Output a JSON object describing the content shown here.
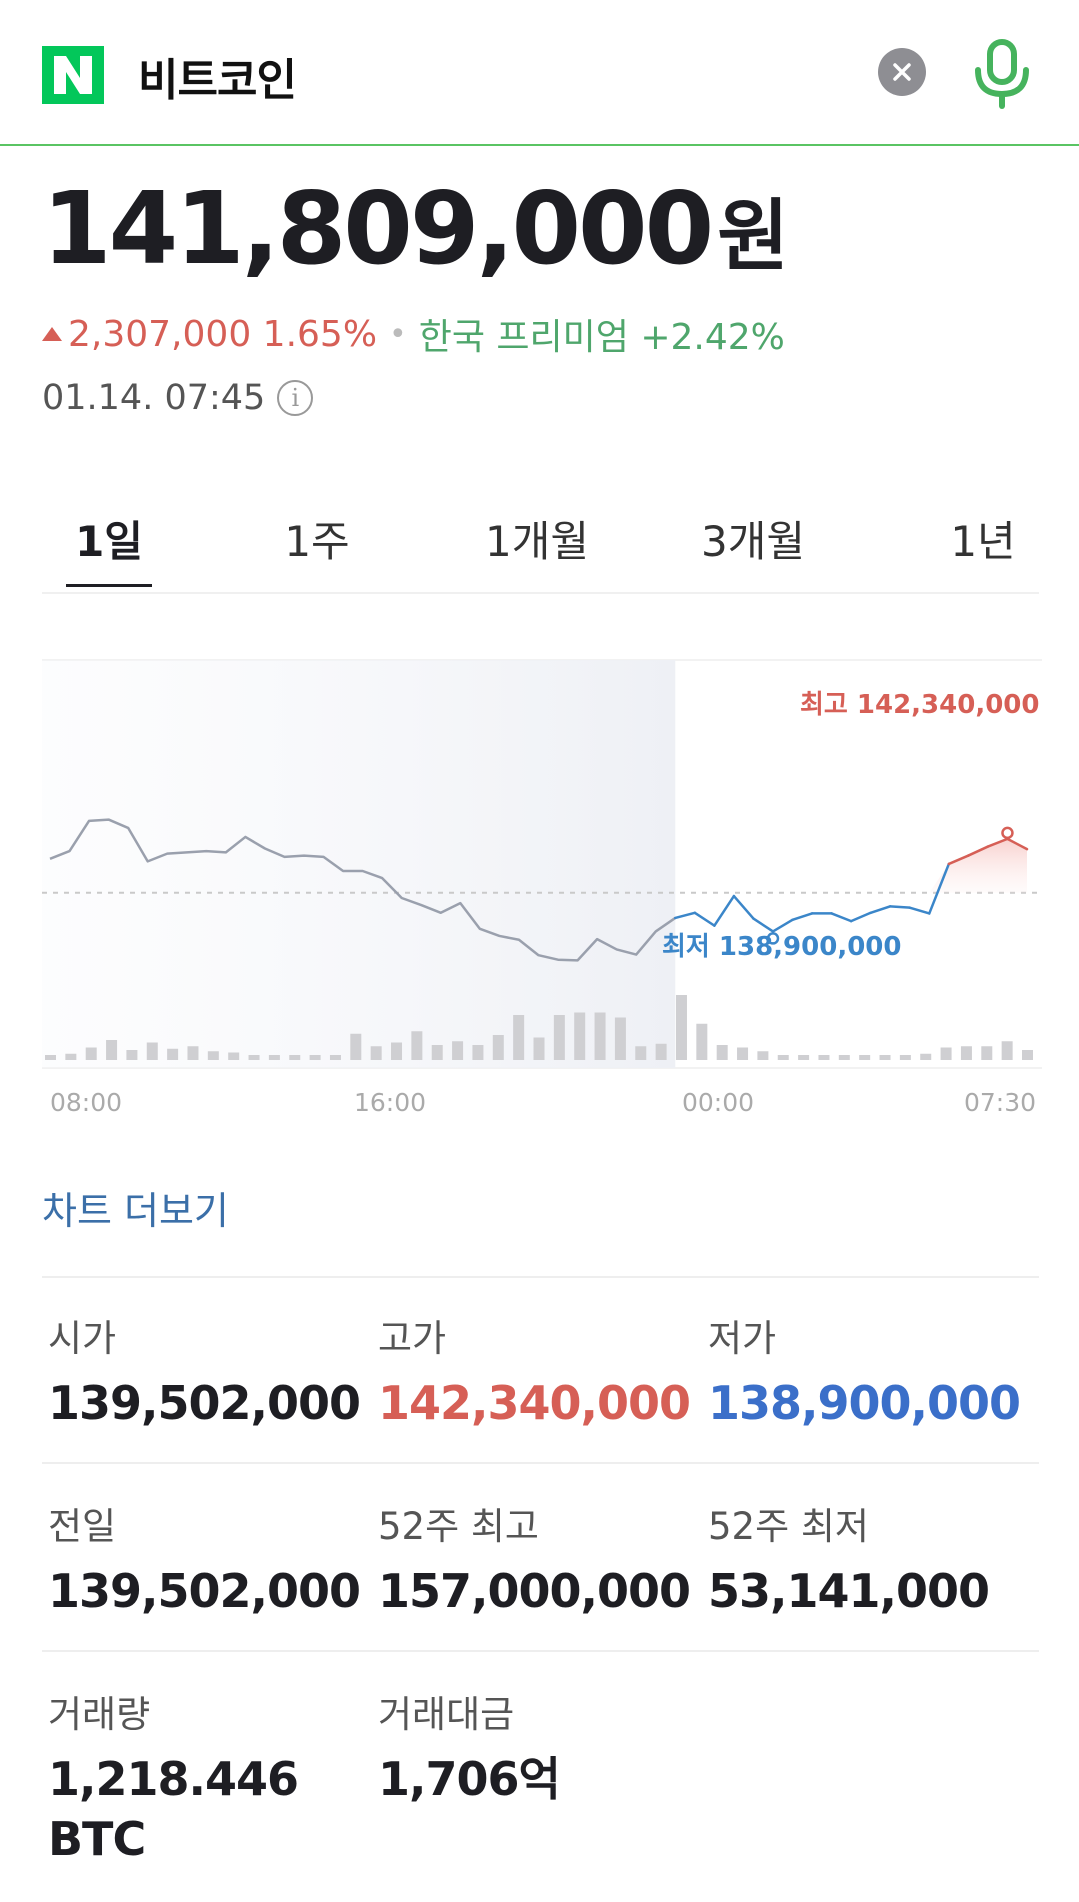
{
  "header": {
    "logo_letter": "N",
    "query": "비트코인",
    "brand_color": "#03c75a"
  },
  "quote": {
    "price": "141,809,000",
    "unit": "원",
    "change": "2,307,000 1.65%",
    "change_direction": "up",
    "premium": "한국 프리미엄 +2.42%",
    "timestamp": "01.14. 07:45",
    "colors": {
      "up": "#d65f56",
      "premium": "#4fa66c",
      "down": "#3b6fc9"
    }
  },
  "tabs": [
    {
      "label": "1일",
      "active": true
    },
    {
      "label": "1주",
      "active": false
    },
    {
      "label": "1개월",
      "active": false
    },
    {
      "label": "3개월",
      "active": false
    },
    {
      "label": "1년",
      "active": false
    }
  ],
  "chart_data": {
    "type": "line",
    "x_ticks": [
      "08:00",
      "16:00",
      "00:00",
      "07:30"
    ],
    "high_label": "최고 142,340,000",
    "low_label": "최저 138,900,000",
    "high": 142340000,
    "low": 138900000,
    "previous_close": 139502000,
    "price_series": [
      140030000,
      140150000,
      140620000,
      140640000,
      140510000,
      139990000,
      140110000,
      140130000,
      140150000,
      140130000,
      140370000,
      140190000,
      140060000,
      140080000,
      140060000,
      139840000,
      139840000,
      139730000,
      139420000,
      139310000,
      139190000,
      139340000,
      138940000,
      138830000,
      138770000,
      138530000,
      138460000,
      138450000,
      138780000,
      138620000,
      138540000,
      138900000,
      139110000,
      139190000,
      138990000,
      139450000,
      139100000,
      138900000,
      139080000,
      139180000,
      139180000,
      139060000,
      139190000,
      139290000,
      139270000,
      139180000,
      139950000,
      140080000,
      140220000,
      140340000,
      140180000
    ],
    "current_segment_start_index": 32,
    "volume_series": [
      4,
      5,
      10,
      16,
      8,
      14,
      9,
      11,
      7,
      6,
      4,
      4,
      4,
      4,
      4,
      21,
      11,
      14,
      23,
      12,
      15,
      12,
      20,
      36,
      18,
      36,
      38,
      38,
      34,
      11,
      13,
      52,
      29,
      12,
      10,
      7,
      4,
      4,
      4,
      4,
      4,
      4,
      4,
      5,
      10,
      11,
      11,
      15,
      8
    ],
    "reference_line": "dashed"
  },
  "more_chart_label": "차트 더보기",
  "stats": [
    {
      "label": "시가",
      "value": "139,502,000",
      "tone": "normal"
    },
    {
      "label": "고가",
      "value": "142,340,000",
      "tone": "red"
    },
    {
      "label": "저가",
      "value": "138,900,000",
      "tone": "blue"
    },
    {
      "label": "전일",
      "value": "139,502,000",
      "tone": "normal"
    },
    {
      "label": "52주 최고",
      "value": "157,000,000",
      "tone": "normal"
    },
    {
      "label": "52주 최저",
      "value": "53,141,000",
      "tone": "normal"
    },
    {
      "label": "거래량",
      "value": "1,218.446 BTC",
      "tone": "normal"
    },
    {
      "label": "거래대금",
      "value": "1,706억",
      "tone": "normal"
    }
  ]
}
